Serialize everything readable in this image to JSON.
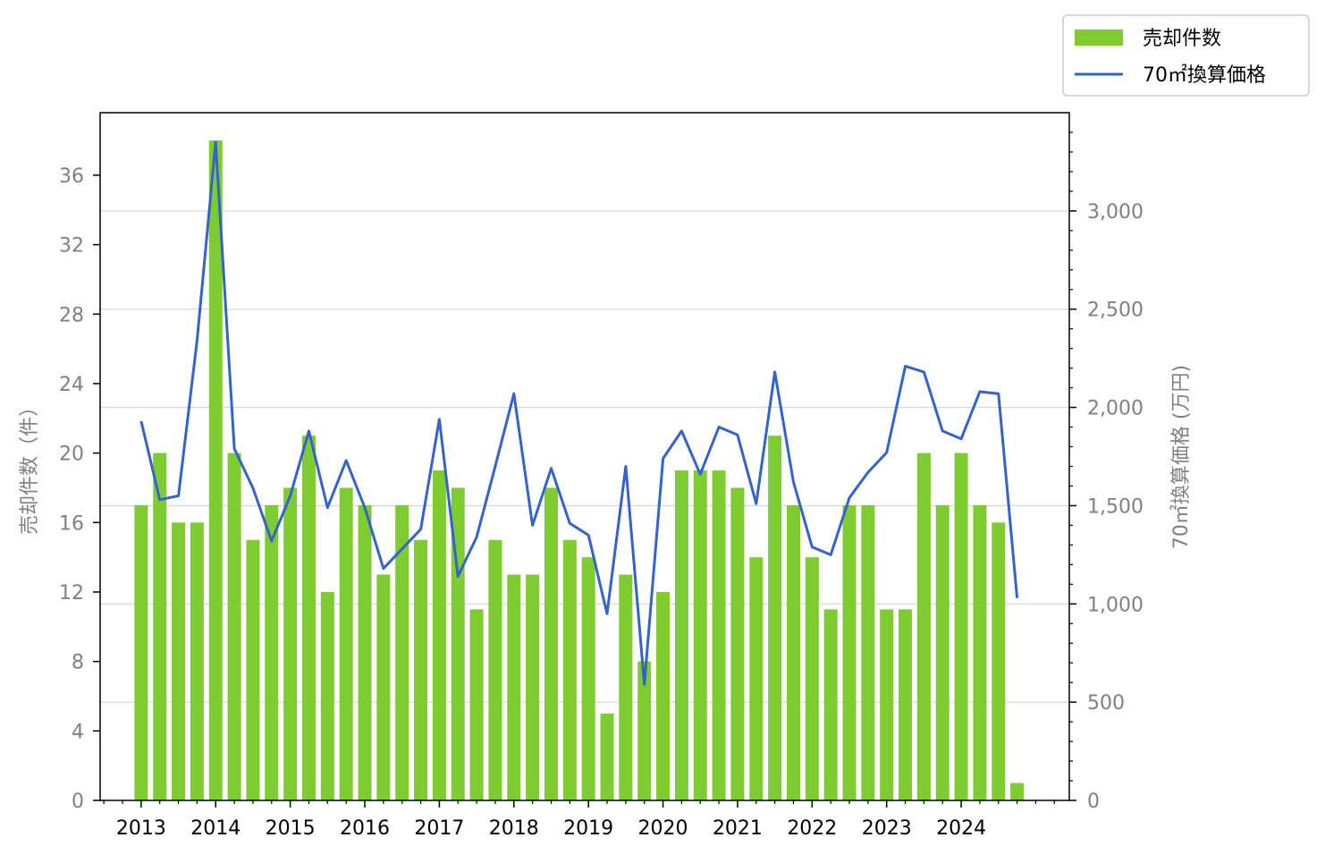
{
  "colors": {
    "bar": "#7ECC32",
    "line": "#3463CD",
    "grid": "#D9D9D9",
    "axis": "#000000",
    "tick_text": "#808080"
  },
  "legend": {
    "placement": "top-right, outside plot",
    "bar_label": "売却件数",
    "line_label": "70㎡換算価格"
  },
  "chart_data": {
    "type": "bar+line",
    "title": "",
    "grid": "horizontal, right axis",
    "x_axis": {
      "ticks": [
        "2013",
        "2014",
        "2015",
        "2016",
        "2017",
        "2018",
        "2019",
        "2020",
        "2021",
        "2022",
        "2023",
        "2024"
      ]
    },
    "y_left": {
      "label": "売却件数（件）",
      "range": [
        0,
        39.6
      ],
      "ticks": [
        0,
        4,
        8,
        12,
        16,
        20,
        24,
        28,
        32,
        36
      ]
    },
    "y_right": {
      "label": "70㎡換算価格 (万円)",
      "range": [
        0,
        3500
      ],
      "ticks": [
        0,
        500,
        1000,
        1500,
        2000,
        2500,
        3000
      ],
      "tick_labels": [
        "0",
        "500",
        "1,000",
        "1,500",
        "2,000",
        "2,500",
        "3,000"
      ]
    },
    "x_range": [
      2012.45,
      2025.45
    ],
    "series": [
      {
        "name": "売却件数",
        "kind": "bar",
        "axis": "left",
        "x": [
          2013.0,
          2013.25,
          2013.5,
          2013.75,
          2014.0,
          2014.25,
          2014.5,
          2014.75,
          2015.0,
          2015.25,
          2015.5,
          2015.75,
          2016.0,
          2016.25,
          2016.5,
          2016.75,
          2017.0,
          2017.25,
          2017.5,
          2017.75,
          2018.0,
          2018.25,
          2018.5,
          2018.75,
          2019.0,
          2019.25,
          2019.5,
          2019.75,
          2020.0,
          2020.25,
          2020.5,
          2020.75,
          2021.0,
          2021.25,
          2021.5,
          2021.75,
          2022.0,
          2022.25,
          2022.5,
          2022.75,
          2023.0,
          2023.25,
          2023.5,
          2023.75,
          2024.0,
          2024.25,
          2024.5,
          2024.75
        ],
        "values": [
          17,
          20,
          16,
          16,
          38,
          20,
          15,
          17,
          18,
          21,
          12,
          18,
          17,
          13,
          17,
          15,
          19,
          18,
          11,
          15,
          13,
          13,
          18,
          15,
          14,
          5,
          13,
          8,
          12,
          19,
          19,
          19,
          18,
          14,
          21,
          17,
          14,
          11,
          17,
          17,
          11,
          11,
          20,
          17,
          20,
          17,
          16,
          1
        ]
      },
      {
        "name": "70㎡換算価格",
        "kind": "line",
        "axis": "right",
        "x": [
          2013.0,
          2013.25,
          2013.5,
          2013.75,
          2014.0,
          2014.25,
          2014.5,
          2014.75,
          2015.0,
          2015.25,
          2015.5,
          2015.75,
          2016.0,
          2016.25,
          2016.5,
          2016.75,
          2017.0,
          2017.25,
          2017.5,
          2017.75,
          2018.0,
          2018.25,
          2018.5,
          2018.75,
          2019.0,
          2019.25,
          2019.5,
          2019.75,
          2020.0,
          2020.25,
          2020.5,
          2020.75,
          2021.0,
          2021.25,
          2021.5,
          2021.75,
          2022.0,
          2022.25,
          2022.5,
          2022.75,
          2023.0,
          2023.25,
          2023.5,
          2023.75,
          2024.0,
          2024.25,
          2024.5,
          2024.75
        ],
        "values": [
          1930,
          1530,
          1550,
          2340,
          3350,
          1790,
          1590,
          1320,
          1550,
          1880,
          1490,
          1730,
          1490,
          1180,
          1280,
          1380,
          1940,
          1140,
          1340,
          1700,
          2070,
          1400,
          1690,
          1410,
          1350,
          950,
          1700,
          590,
          1740,
          1880,
          1660,
          1900,
          1860,
          1510,
          2180,
          1620,
          1290,
          1250,
          1540,
          1670,
          1770,
          2210,
          2180,
          1880,
          1840,
          2080,
          2070,
          1030
        ]
      }
    ]
  }
}
